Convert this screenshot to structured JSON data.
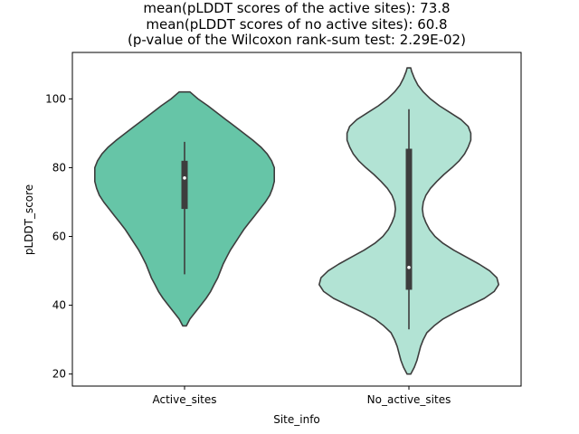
{
  "chart_data": {
    "type": "violin",
    "title_lines": [
      "mean(pLDDT scores of the active sites): 73.8",
      "mean(pLDDT scores of no active sites): 60.8",
      "(p-value of the Wilcoxon rank-sum test: 2.29E-02)"
    ],
    "xlabel": "Site_info",
    "ylabel": "pLDDT_score",
    "categories": [
      "Active_sites",
      "No_active_sites"
    ],
    "ylim": [
      16.5,
      113.5
    ],
    "yticks": [
      20,
      40,
      60,
      80,
      100
    ],
    "grid": false,
    "colors": {
      "Active_sites": "#66c5a7",
      "No_active_sites": "#b2e3d4",
      "edge": "#3d3d3d"
    },
    "series": [
      {
        "category": "Active_sites",
        "mean": 73.8,
        "median": 77,
        "q1": 68,
        "q3": 82,
        "whisker_low": 49,
        "whisker_high": 87.5,
        "kde_min": 34,
        "kde_max": 102,
        "density": [
          [
            34,
            0.02
          ],
          [
            36,
            0.06
          ],
          [
            38,
            0.12
          ],
          [
            40,
            0.18
          ],
          [
            42,
            0.24
          ],
          [
            44,
            0.29
          ],
          [
            46,
            0.33
          ],
          [
            48,
            0.37
          ],
          [
            50,
            0.4
          ],
          [
            52,
            0.43
          ],
          [
            54,
            0.47
          ],
          [
            56,
            0.51
          ],
          [
            58,
            0.56
          ],
          [
            60,
            0.61
          ],
          [
            62,
            0.66
          ],
          [
            64,
            0.72
          ],
          [
            66,
            0.78
          ],
          [
            68,
            0.84
          ],
          [
            70,
            0.9
          ],
          [
            72,
            0.95
          ],
          [
            74,
            0.98
          ],
          [
            76,
            1.0
          ],
          [
            78,
            1.0
          ],
          [
            80,
            1.0
          ],
          [
            82,
            0.97
          ],
          [
            84,
            0.92
          ],
          [
            86,
            0.85
          ],
          [
            88,
            0.76
          ],
          [
            90,
            0.66
          ],
          [
            92,
            0.56
          ],
          [
            94,
            0.46
          ],
          [
            96,
            0.36
          ],
          [
            98,
            0.26
          ],
          [
            100,
            0.15
          ],
          [
            102,
            0.06
          ]
        ]
      },
      {
        "category": "No_active_sites",
        "mean": 60.8,
        "median": 51,
        "q1": 44.5,
        "q3": 85.5,
        "whisker_low": 33,
        "whisker_high": 97,
        "kde_min": 20,
        "kde_max": 109,
        "density": [
          [
            20,
            0.02
          ],
          [
            22,
            0.06
          ],
          [
            24,
            0.09
          ],
          [
            26,
            0.11
          ],
          [
            28,
            0.13
          ],
          [
            30,
            0.16
          ],
          [
            32,
            0.2
          ],
          [
            34,
            0.28
          ],
          [
            36,
            0.38
          ],
          [
            38,
            0.52
          ],
          [
            40,
            0.68
          ],
          [
            42,
            0.84
          ],
          [
            44,
            0.95
          ],
          [
            46,
            1.0
          ],
          [
            48,
            0.98
          ],
          [
            50,
            0.9
          ],
          [
            52,
            0.78
          ],
          [
            54,
            0.64
          ],
          [
            56,
            0.5
          ],
          [
            58,
            0.38
          ],
          [
            60,
            0.29
          ],
          [
            62,
            0.23
          ],
          [
            64,
            0.19
          ],
          [
            66,
            0.16
          ],
          [
            68,
            0.15
          ],
          [
            70,
            0.16
          ],
          [
            72,
            0.19
          ],
          [
            74,
            0.24
          ],
          [
            76,
            0.31
          ],
          [
            78,
            0.39
          ],
          [
            80,
            0.48
          ],
          [
            82,
            0.56
          ],
          [
            84,
            0.62
          ],
          [
            86,
            0.66
          ],
          [
            88,
            0.69
          ],
          [
            90,
            0.69
          ],
          [
            92,
            0.66
          ],
          [
            94,
            0.58
          ],
          [
            96,
            0.46
          ],
          [
            98,
            0.34
          ],
          [
            100,
            0.24
          ],
          [
            102,
            0.16
          ],
          [
            104,
            0.1
          ],
          [
            106,
            0.06
          ],
          [
            108,
            0.03
          ],
          [
            109,
            0.02
          ]
        ]
      }
    ]
  }
}
